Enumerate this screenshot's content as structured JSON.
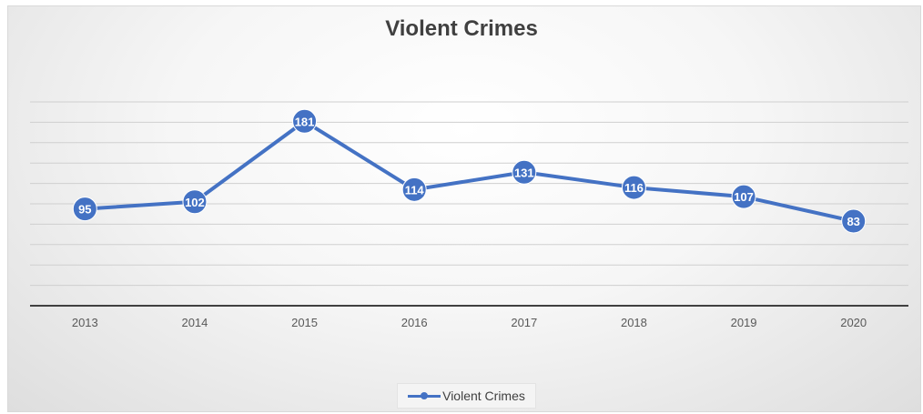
{
  "chart_data": {
    "type": "line",
    "title": "Violent Crimes",
    "categories": [
      "2013",
      "2014",
      "2015",
      "2016",
      "2017",
      "2018",
      "2019",
      "2020"
    ],
    "series": [
      {
        "name": "Violent Crimes",
        "values": [
          95,
          102,
          181,
          114,
          131,
          116,
          107,
          83
        ],
        "color": "#4472c4"
      }
    ],
    "ylim": [
      0,
      200
    ],
    "grid": true,
    "data_labels": true,
    "legend_position": "bottom"
  }
}
